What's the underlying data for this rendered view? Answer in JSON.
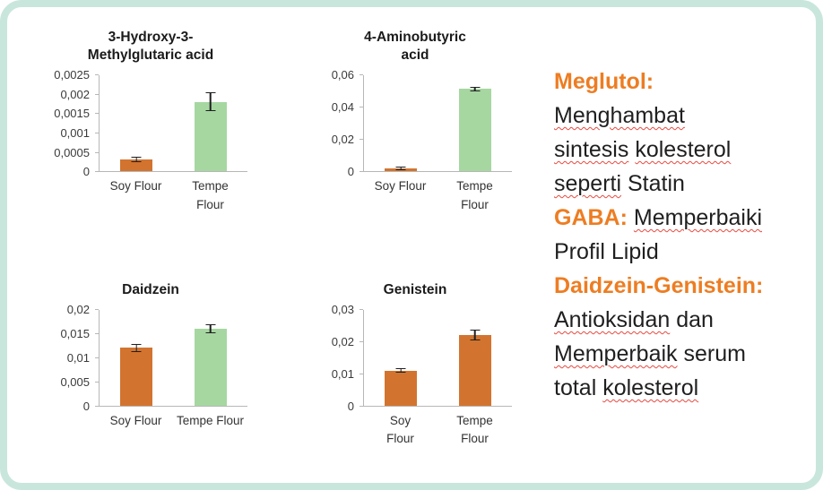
{
  "frame": {
    "background": "#ffffff",
    "border_color": "#c9e6dd"
  },
  "palette": {
    "orange_bar": "#d2742f",
    "green_bar": "#a6d7a1",
    "accent_text": "#ed7d22",
    "axis_color": "#b7b7b7",
    "tick_label_color": "#3a3a3a",
    "error_bar_color": "#1f1f1f",
    "misspell_underline": "#e84a3f"
  },
  "chart_data": [
    {
      "type": "bar",
      "title": "3-Hydroxy-3-\nMethylglutaric acid",
      "categories": [
        "Soy Flour",
        "Tempe\nFlour"
      ],
      "values": [
        0.0003,
        0.0018
      ],
      "errors": [
        7e-05,
        0.00025
      ],
      "bar_colors": [
        "#d2742f",
        "#a6d7a1"
      ],
      "xlabel": "",
      "ylabel": "",
      "ylim": [
        0,
        0.0025
      ],
      "yticks": [
        0,
        0.0005,
        0.001,
        0.0015,
        0.002,
        0.0025
      ],
      "ytick_labels": [
        "0",
        "0,0005",
        "0,001",
        "0,0015",
        "0,002",
        "0,0025"
      ],
      "grid": false,
      "legend": false
    },
    {
      "type": "bar",
      "title": "4-Aminobutyric\nacid",
      "categories": [
        "Soy Flour",
        "Tempe\nFlour"
      ],
      "values": [
        0.002,
        0.051
      ],
      "errors": [
        0.0012,
        0.0015
      ],
      "bar_colors": [
        "#d2742f",
        "#a6d7a1"
      ],
      "xlabel": "",
      "ylabel": "",
      "ylim": [
        0,
        0.06
      ],
      "yticks": [
        0,
        0.02,
        0.04,
        0.06
      ],
      "ytick_labels": [
        "0",
        "0,02",
        "0,04",
        "0,06"
      ],
      "grid": false,
      "legend": false
    },
    {
      "type": "bar",
      "title": "Daidzein",
      "categories": [
        "Soy Flour",
        "Tempe Flour"
      ],
      "values": [
        0.012,
        0.016
      ],
      "errors": [
        0.0008,
        0.0009
      ],
      "bar_colors": [
        "#d2742f",
        "#a6d7a1"
      ],
      "xlabel": "",
      "ylabel": "",
      "ylim": [
        0,
        0.02
      ],
      "yticks": [
        0,
        0.005,
        0.01,
        0.015,
        0.02
      ],
      "ytick_labels": [
        "0",
        "0,005",
        "0,01",
        "0,015",
        "0,02"
      ],
      "grid": false,
      "legend": false
    },
    {
      "type": "bar",
      "title": "Genistein",
      "categories": [
        "Soy\nFlour",
        "Tempe\nFlour"
      ],
      "values": [
        0.011,
        0.022
      ],
      "errors": [
        0.0007,
        0.0017
      ],
      "bar_colors": [
        "#d2742f",
        "#d2742f"
      ],
      "xlabel": "",
      "ylabel": "",
      "ylim": [
        0,
        0.03
      ],
      "yticks": [
        0,
        0.01,
        0.02,
        0.03
      ],
      "ytick_labels": [
        "0",
        "0,01",
        "0,02",
        "0,03"
      ],
      "grid": false,
      "legend": false
    }
  ],
  "notes": {
    "lines": [
      {
        "parts": [
          {
            "t": "Meglutol:",
            "style": "accent"
          }
        ]
      },
      {
        "parts": [
          {
            "t": "Menghambat",
            "style": "mis"
          }
        ]
      },
      {
        "parts": [
          {
            "t": "sintesis",
            "style": "mis"
          },
          {
            "t": " "
          },
          {
            "t": "kolesterol",
            "style": "mis"
          }
        ]
      },
      {
        "parts": [
          {
            "t": "seperti",
            "style": "mis"
          },
          {
            "t": " Statin"
          }
        ]
      },
      {
        "parts": [
          {
            "t": "GABA:",
            "style": "accent"
          },
          {
            "t": " "
          },
          {
            "t": "Memperbaiki",
            "style": "mis"
          }
        ]
      },
      {
        "parts": [
          {
            "t": "Profil Lipid"
          }
        ]
      },
      {
        "parts": [
          {
            "t": "Daidzein-Genistein:",
            "style": "accent"
          }
        ]
      },
      {
        "parts": [
          {
            "t": "Antioksidan",
            "style": "mis"
          },
          {
            "t": " dan"
          }
        ]
      },
      {
        "parts": [
          {
            "t": "Memperbaik",
            "style": "mis"
          },
          {
            "t": " serum"
          }
        ]
      },
      {
        "parts": [
          {
            "t": "total "
          },
          {
            "t": "kolesterol",
            "style": "mis"
          }
        ]
      }
    ]
  }
}
